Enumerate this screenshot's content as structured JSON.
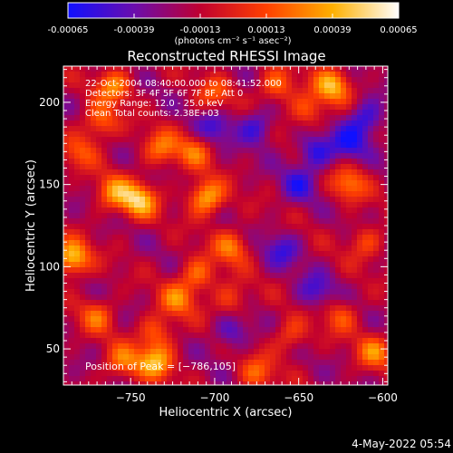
{
  "colorbar": {
    "tick_labels": [
      "-0.00065",
      "-0.00039",
      "-0.00013",
      "0.00013",
      "0.00039",
      "0.00065"
    ],
    "tick_values": [
      -0.00065,
      -0.00039,
      -0.00013,
      0.00013,
      0.00039,
      0.00065
    ],
    "range": [
      -0.00065,
      0.00065
    ],
    "units_label": "(photons cm⁻² s⁻¹ asec⁻²)",
    "colors": [
      "#1010ff",
      "#6a0dad",
      "#c00030",
      "#ff4000",
      "#ffb000",
      "#ffffff"
    ]
  },
  "chart_data": {
    "type": "heatmap",
    "title": "Reconstructed RHESSI Image",
    "xlabel": "Heliocentric X (arcsec)",
    "ylabel": "Heliocentric Y (arcsec)",
    "xlim": [
      -790,
      -597
    ],
    "ylim": [
      28,
      222
    ],
    "x_ticks": [
      -750,
      -700,
      -650,
      -600
    ],
    "y_ticks": [
      50,
      100,
      150,
      200
    ],
    "x_tick_labels": [
      "−750",
      "−700",
      "−650",
      "−600"
    ],
    "y_tick_labels": [
      "50",
      "100",
      "150",
      "200"
    ],
    "peak": [
      -786,
      105
    ],
    "info_lines": [
      "22-Oct-2004 08:40:00.000 to 08:41:52.000",
      "Detectors: 3F 4F 5F 6F 7F 8F, Att 0",
      "Energy Range: 12.0 - 25.0 keV",
      "Clean     Total counts: 2.38E+03"
    ],
    "peak_label": "Position of Peak = [−786,105]",
    "blobs": [
      {
        "x": -785,
        "y": 105,
        "v": 0.00065
      },
      {
        "x": -760,
        "y": 145,
        "v": 0.00045
      },
      {
        "x": -745,
        "y": 140,
        "v": 0.0006
      },
      {
        "x": -732,
        "y": 172,
        "v": 0.0004
      },
      {
        "x": -705,
        "y": 142,
        "v": 0.0006
      },
      {
        "x": -710,
        "y": 95,
        "v": 0.0004
      },
      {
        "x": -722,
        "y": 80,
        "v": 0.0004
      },
      {
        "x": -735,
        "y": 60,
        "v": 0.00035
      },
      {
        "x": -735,
        "y": 42,
        "v": 0.00055
      },
      {
        "x": -755,
        "y": 42,
        "v": 0.0004
      },
      {
        "x": -768,
        "y": 188,
        "v": 0.0004
      },
      {
        "x": -780,
        "y": 170,
        "v": 0.0003
      },
      {
        "x": -712,
        "y": 170,
        "v": 0.00035
      },
      {
        "x": -690,
        "y": 112,
        "v": 0.0004
      },
      {
        "x": -690,
        "y": 80,
        "v": 0.0003
      },
      {
        "x": -630,
        "y": 210,
        "v": 0.00055
      },
      {
        "x": -645,
        "y": 195,
        "v": 0.00035
      },
      {
        "x": -620,
        "y": 150,
        "v": 0.0004
      },
      {
        "x": -610,
        "y": 115,
        "v": 0.0003
      },
      {
        "x": -605,
        "y": 48,
        "v": 0.0004
      },
      {
        "x": -625,
        "y": 70,
        "v": 0.0003
      },
      {
        "x": -655,
        "y": 58,
        "v": 0.0003
      },
      {
        "x": -675,
        "y": 35,
        "v": 0.00035
      },
      {
        "x": -663,
        "y": 210,
        "v": 0.0004
      },
      {
        "x": -700,
        "y": 205,
        "v": 0.0003
      },
      {
        "x": -760,
        "y": 210,
        "v": 0.00045
      },
      {
        "x": -770,
        "y": 70,
        "v": 0.00035
      },
      {
        "x": -650,
        "y": 150,
        "v": -0.0003
      },
      {
        "x": -640,
        "y": 170,
        "v": -0.0004
      },
      {
        "x": -620,
        "y": 175,
        "v": -0.00035
      },
      {
        "x": -660,
        "y": 110,
        "v": -0.0003
      },
      {
        "x": -700,
        "y": 185,
        "v": -0.0003
      },
      {
        "x": -675,
        "y": 185,
        "v": -0.00035
      },
      {
        "x": -640,
        "y": 85,
        "v": -0.0003
      },
      {
        "x": -690,
        "y": 60,
        "v": -0.0003
      },
      {
        "x": -610,
        "y": 190,
        "v": -0.0004
      }
    ]
  },
  "footer": {
    "timestamp": "4-May-2022 05:54"
  }
}
